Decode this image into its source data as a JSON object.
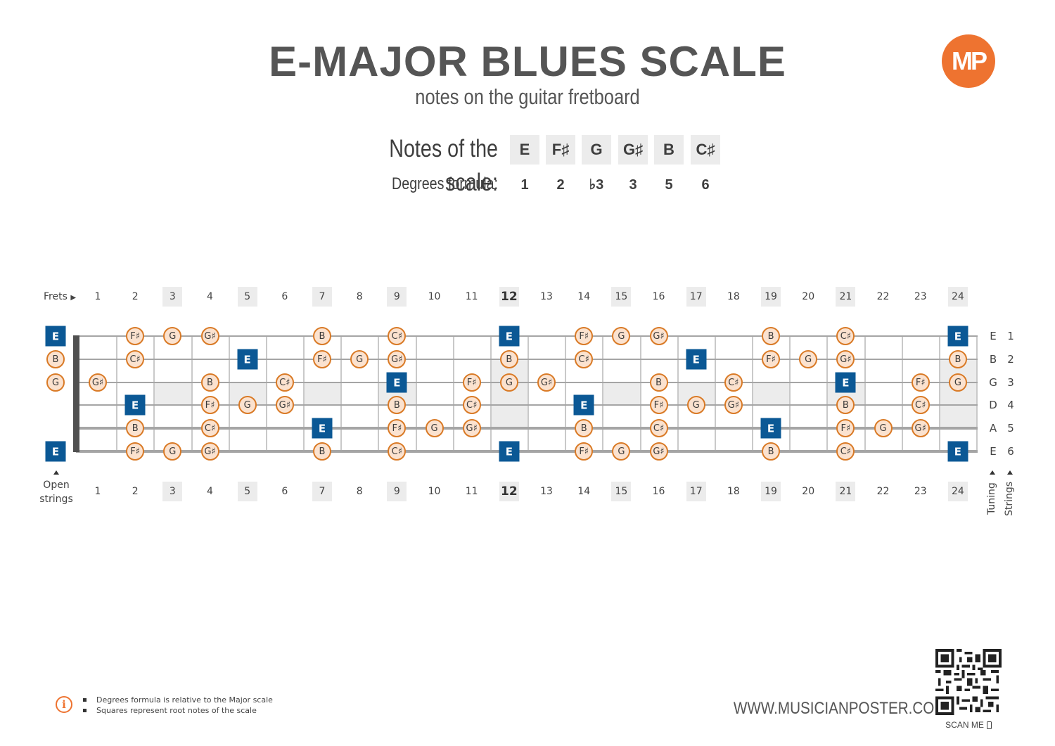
{
  "header": {
    "title": "E-MAJOR BLUES SCALE",
    "subtitle": "notes on the guitar fretboard",
    "logo_text": "MP",
    "logo_color": "#ee7330"
  },
  "scale": {
    "notes_label": "Notes of the scale:",
    "notes": [
      "E",
      "F♯",
      "G",
      "G♯",
      "B",
      "C♯"
    ],
    "degrees_label": "Degrees formula:",
    "degrees": [
      "1",
      "2",
      "♭3",
      "3",
      "5",
      "6"
    ]
  },
  "fretboard": {
    "frets_label": "Frets",
    "open_label_line1": "Open",
    "open_label_line2": "strings",
    "tuning_label": "Tuning",
    "strings_label": "Strings",
    "fret_numbers": [
      "1",
      "2",
      "3",
      "4",
      "5",
      "6",
      "7",
      "8",
      "9",
      "10",
      "11",
      "12",
      "13",
      "14",
      "15",
      "16",
      "17",
      "18",
      "19",
      "20",
      "21",
      "22",
      "23",
      "24"
    ],
    "marked_frets": [
      3,
      5,
      7,
      9,
      12,
      15,
      17,
      19,
      21,
      24
    ],
    "bold_frets": [
      12
    ],
    "strings": [
      {
        "tuning": "E",
        "number": "1"
      },
      {
        "tuning": "B",
        "number": "2"
      },
      {
        "tuning": "G",
        "number": "3"
      },
      {
        "tuning": "D",
        "number": "4"
      },
      {
        "tuning": "A",
        "number": "5"
      },
      {
        "tuning": "E",
        "number": "6"
      }
    ],
    "root_color": "#0b5895",
    "note_fill": "#fbe2cf",
    "note_border": "#d97a26",
    "notes": [
      {
        "s": 1,
        "f": 0,
        "n": "E",
        "root": true
      },
      {
        "s": 1,
        "f": 2,
        "n": "F♯"
      },
      {
        "s": 1,
        "f": 3,
        "n": "G"
      },
      {
        "s": 1,
        "f": 4,
        "n": "G♯"
      },
      {
        "s": 1,
        "f": 7,
        "n": "B"
      },
      {
        "s": 1,
        "f": 9,
        "n": "C♯"
      },
      {
        "s": 1,
        "f": 12,
        "n": "E",
        "root": true
      },
      {
        "s": 1,
        "f": 14,
        "n": "F♯"
      },
      {
        "s": 1,
        "f": 15,
        "n": "G"
      },
      {
        "s": 1,
        "f": 16,
        "n": "G♯"
      },
      {
        "s": 1,
        "f": 19,
        "n": "B"
      },
      {
        "s": 1,
        "f": 21,
        "n": "C♯"
      },
      {
        "s": 1,
        "f": 24,
        "n": "E",
        "root": true
      },
      {
        "s": 2,
        "f": 0,
        "n": "B"
      },
      {
        "s": 2,
        "f": 2,
        "n": "C♯"
      },
      {
        "s": 2,
        "f": 5,
        "n": "E",
        "root": true
      },
      {
        "s": 2,
        "f": 7,
        "n": "F♯"
      },
      {
        "s": 2,
        "f": 8,
        "n": "G"
      },
      {
        "s": 2,
        "f": 9,
        "n": "G♯"
      },
      {
        "s": 2,
        "f": 12,
        "n": "B"
      },
      {
        "s": 2,
        "f": 14,
        "n": "C♯"
      },
      {
        "s": 2,
        "f": 17,
        "n": "E",
        "root": true
      },
      {
        "s": 2,
        "f": 19,
        "n": "F♯"
      },
      {
        "s": 2,
        "f": 20,
        "n": "G"
      },
      {
        "s": 2,
        "f": 21,
        "n": "G♯"
      },
      {
        "s": 2,
        "f": 24,
        "n": "B"
      },
      {
        "s": 3,
        "f": 0,
        "n": "G"
      },
      {
        "s": 3,
        "f": 1,
        "n": "G♯"
      },
      {
        "s": 3,
        "f": 4,
        "n": "B"
      },
      {
        "s": 3,
        "f": 6,
        "n": "C♯"
      },
      {
        "s": 3,
        "f": 9,
        "n": "E",
        "root": true
      },
      {
        "s": 3,
        "f": 11,
        "n": "F♯"
      },
      {
        "s": 3,
        "f": 12,
        "n": "G"
      },
      {
        "s": 3,
        "f": 13,
        "n": "G♯"
      },
      {
        "s": 3,
        "f": 16,
        "n": "B"
      },
      {
        "s": 3,
        "f": 18,
        "n": "C♯"
      },
      {
        "s": 3,
        "f": 21,
        "n": "E",
        "root": true
      },
      {
        "s": 3,
        "f": 23,
        "n": "F♯"
      },
      {
        "s": 3,
        "f": 24,
        "n": "G"
      },
      {
        "s": 4,
        "f": 2,
        "n": "E",
        "root": true
      },
      {
        "s": 4,
        "f": 4,
        "n": "F♯"
      },
      {
        "s": 4,
        "f": 5,
        "n": "G"
      },
      {
        "s": 4,
        "f": 6,
        "n": "G♯"
      },
      {
        "s": 4,
        "f": 9,
        "n": "B"
      },
      {
        "s": 4,
        "f": 11,
        "n": "C♯"
      },
      {
        "s": 4,
        "f": 14,
        "n": "E",
        "root": true
      },
      {
        "s": 4,
        "f": 16,
        "n": "F♯"
      },
      {
        "s": 4,
        "f": 17,
        "n": "G"
      },
      {
        "s": 4,
        "f": 18,
        "n": "G♯"
      },
      {
        "s": 4,
        "f": 21,
        "n": "B"
      },
      {
        "s": 4,
        "f": 23,
        "n": "C♯"
      },
      {
        "s": 5,
        "f": 2,
        "n": "B"
      },
      {
        "s": 5,
        "f": 4,
        "n": "C♯"
      },
      {
        "s": 5,
        "f": 7,
        "n": "E",
        "root": true
      },
      {
        "s": 5,
        "f": 9,
        "n": "F♯"
      },
      {
        "s": 5,
        "f": 10,
        "n": "G"
      },
      {
        "s": 5,
        "f": 11,
        "n": "G♯"
      },
      {
        "s": 5,
        "f": 14,
        "n": "B"
      },
      {
        "s": 5,
        "f": 16,
        "n": "C♯"
      },
      {
        "s": 5,
        "f": 19,
        "n": "E",
        "root": true
      },
      {
        "s": 5,
        "f": 21,
        "n": "F♯"
      },
      {
        "s": 5,
        "f": 22,
        "n": "G"
      },
      {
        "s": 5,
        "f": 23,
        "n": "G♯"
      },
      {
        "s": 6,
        "f": 0,
        "n": "E",
        "root": true
      },
      {
        "s": 6,
        "f": 2,
        "n": "F♯"
      },
      {
        "s": 6,
        "f": 3,
        "n": "G"
      },
      {
        "s": 6,
        "f": 4,
        "n": "G♯"
      },
      {
        "s": 6,
        "f": 7,
        "n": "B"
      },
      {
        "s": 6,
        "f": 9,
        "n": "C♯"
      },
      {
        "s": 6,
        "f": 12,
        "n": "E",
        "root": true
      },
      {
        "s": 6,
        "f": 14,
        "n": "F♯"
      },
      {
        "s": 6,
        "f": 15,
        "n": "G"
      },
      {
        "s": 6,
        "f": 16,
        "n": "G♯"
      },
      {
        "s": 6,
        "f": 19,
        "n": "B"
      },
      {
        "s": 6,
        "f": 21,
        "n": "C♯"
      },
      {
        "s": 6,
        "f": 24,
        "n": "E",
        "root": true
      }
    ]
  },
  "footer": {
    "info_icon": "i",
    "notes": [
      "Degrees formula is relative to the Major scale",
      "Squares represent root notes of the scale"
    ],
    "website": "WWW.MUSICIANPOSTER.COM",
    "scan_label": "SCAN ME"
  }
}
